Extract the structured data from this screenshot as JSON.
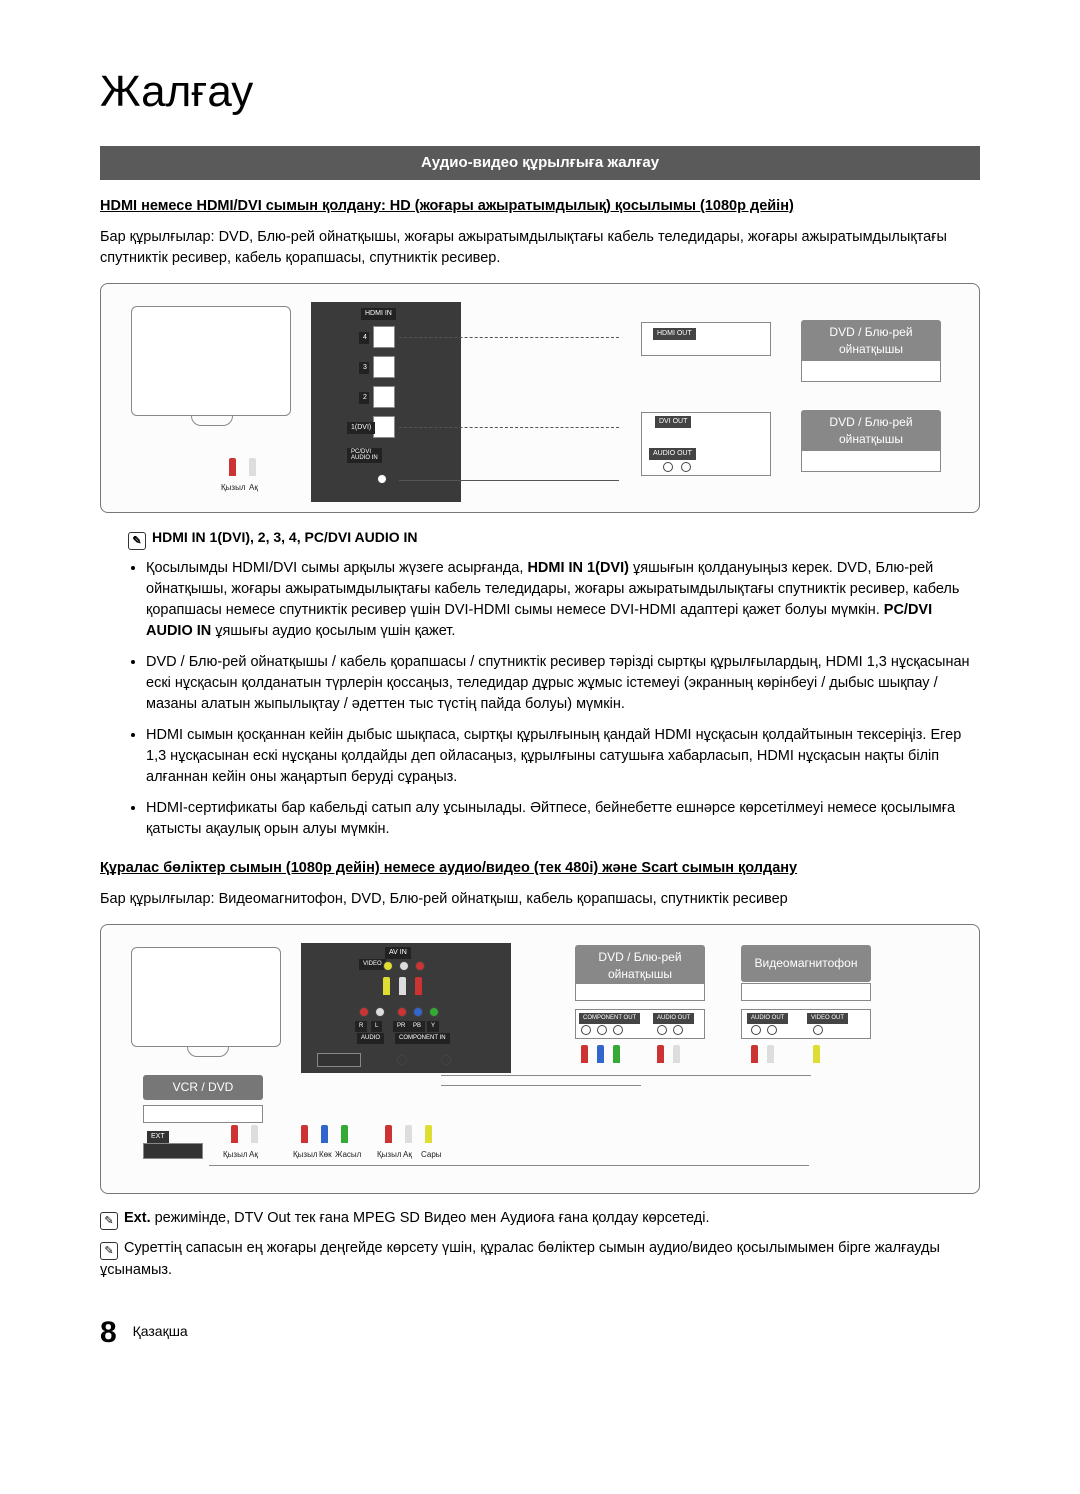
{
  "page_title": "Жалғау",
  "section_bar": "Аудио-видео құрылғыға жалғау",
  "heading1": "HDMI немесе HDMI/DVI сымын қолдану: HD (жоғары ажыратымдылық) қосылымы (1080p дейін)",
  "para1": "Бар құрылғылар: DVD, Блю-рей ойнатқышы, жоғары ажыратымдылықтағы кабель теледидары, жоғары ажыратымдылықтағы спутниктік ресивер, кабель қорапшасы, спутниктік ресивер.",
  "diagram1": {
    "labels": {
      "hdmi_in": "HDMI IN",
      "port4": "4",
      "port3": "3",
      "port2": "2",
      "port1": "1(DVI)",
      "pc_dvi": "PC/DVI\nAUDIO IN",
      "hdmi_out": "HDMI OUT",
      "dvi_out": "DVI OUT",
      "audio_out": "AUDIO OUT",
      "device1": "DVD / Блю-рей ойнатқышы",
      "device2": "DVD / Блю-рей ойнатқышы",
      "red": "Қызыл",
      "white": "Ақ"
    }
  },
  "note1_heading": "HDMI IN 1(DVI), 2, 3, 4, PC/DVI AUDIO IN",
  "bullets1": [
    "Қосылымды HDMI/DVI сымы арқылы жүзеге асырғанда, <b>HDMI IN 1(DVI)</b> ұяшығын қолдануыңыз керек. DVD, Блю-рей ойнатқышы, жоғары ажыратымдылықтағы кабель теледидары, жоғары ажыратымдылықтағы спутниктік ресивер, кабель қорапшасы немесе спутниктік ресивер үшін DVI-HDMI сымы немесе DVI-HDMI адаптері қажет болуы мүмкін. <b>PC/DVI AUDIO IN</b> ұяшығы аудио қосылым үшін қажет.",
    "DVD / Блю-рей ойнатқышы / кабель қорапшасы / спутниктік ресивер тәрізді сыртқы құрылғылардың, HDMI 1,3 нұсқасынан ескі нұсқасын қолданатын түрлерін қоссаңыз, теледидар дұрыс жұмыс істемеуі (экранның көрінбеуі / дыбыс шықпау / мазаны алатын жыпылықтау / әдеттен тыс түстің пайда болуы) мүмкін.",
    "HDMI сымын қосқаннан кейін дыбыс шықпаса, сыртқы құрылғының қандай HDMI нұсқасын қолдайтынын тексеріңіз. Егер 1,3 нұсқасынан ескі нұсқаны қолдайды деп ойласаңыз, құрылғыны сатушыға хабарласып, HDMI нұсқасын нақты біліп алғаннан кейін оны жаңартып беруді сұраңыз.",
    "HDMI-сертификаты бар кабельді сатып алу ұсынылады. Әйтпесе, бейнебетте ешнәрсе көрсетілмеуі немесе қосылымға қатысты ақаулық орын алуы мүмкін."
  ],
  "heading2": "Құралас бөліктер сымын (1080p дейін) немесе аудио/видео (тек 480i) және Scart сымын қолдану",
  "para2": "Бар құрылғылар: Видеомагнитофон, DVD, Блю-рей ойнатқыш, кабель қорапшасы, спутниктік ресивер",
  "diagram2": {
    "labels": {
      "vcr_dvd": "VCR / DVD",
      "ext": "EXT",
      "av_in": "AV IN",
      "video": "VIDEO",
      "audio": "AUDIO",
      "component_in": "COMPONENT IN",
      "pr": "PR",
      "pb": "PB",
      "y": "Y",
      "r": "R",
      "l": "L",
      "device1": "DVD / Блю-рей ойнатқышы",
      "device2": "Видеомагнитофон",
      "component_out": "COMPONENT OUT",
      "audio_out": "AUDIO OUT",
      "video_out": "VIDEO OUT",
      "red": "Қызыл",
      "white": "Ақ",
      "blue": "Көк",
      "green": "Жасыл",
      "yellow": "Сары"
    }
  },
  "note2_a_prefix": "Ext.",
  "note2_a": " режимінде, DTV Out тек ғана MPEG SD Видео мен Аудиоға ғана қолдау көрсетеді.",
  "note2_b": "Суреттің сапасын ең жоғары деңгейде көрсету үшін, құралас бөліктер сымын аудио/видео қосылымымен бірге жалғауды ұсынамыз.",
  "page_number": "8",
  "lang_label": "Қазақша",
  "colors": {
    "bar_bg": "#5a5a5a",
    "bar_fg": "#ffffff",
    "text": "#000000",
    "border": "#777777",
    "device_bg": "#888888"
  }
}
